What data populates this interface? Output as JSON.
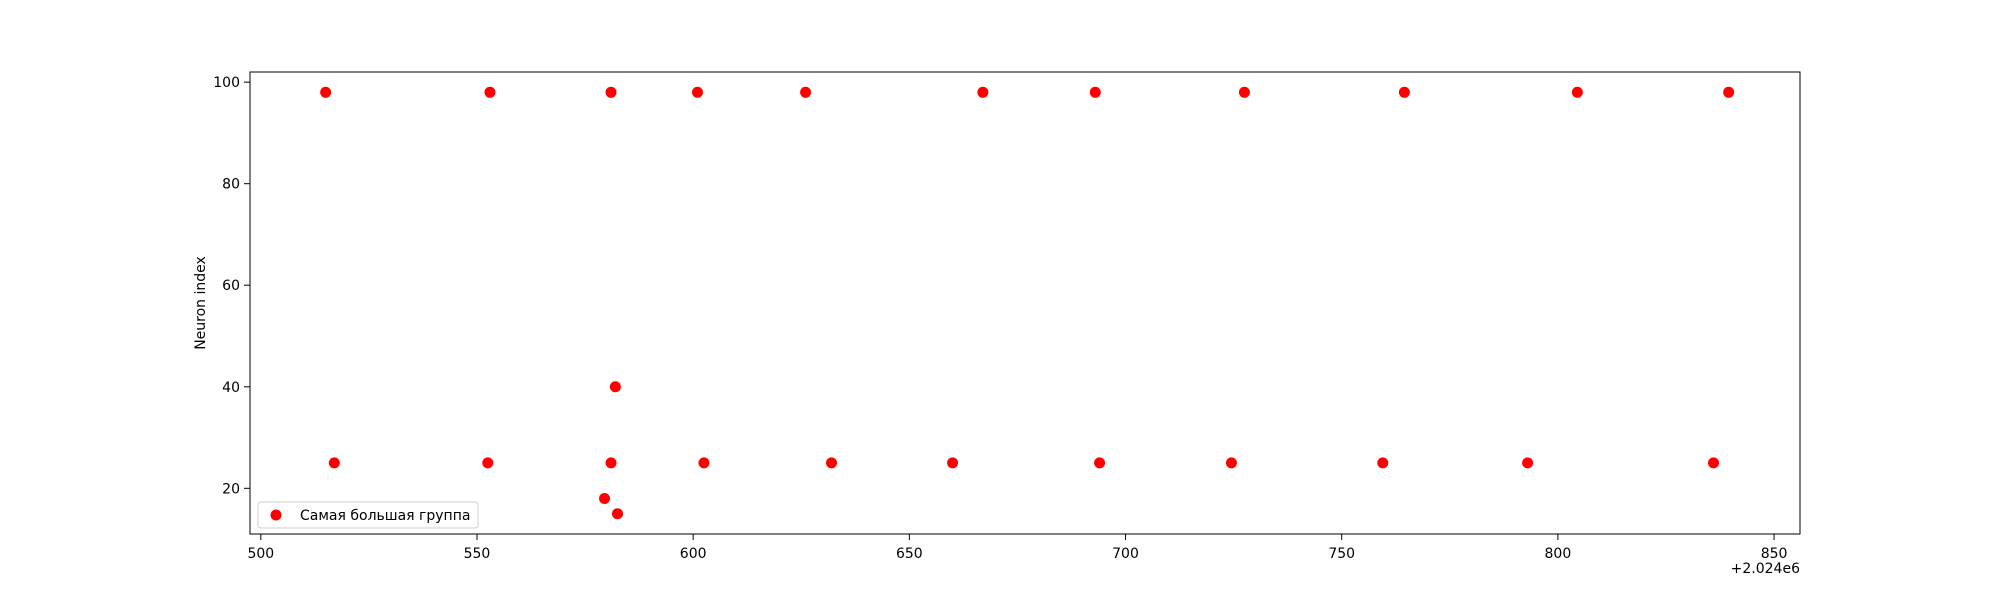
{
  "chart_data": {
    "type": "scatter",
    "title": "",
    "xlabel": "",
    "ylabel": "Neuron index",
    "xlim": [
      2024497.5,
      2024856
    ],
    "ylim": [
      11,
      102
    ],
    "x_ticks": [
      500,
      550,
      600,
      650,
      700,
      750,
      800,
      850
    ],
    "x_tick_labels": [
      "500",
      "550",
      "600",
      "650",
      "700",
      "750",
      "800",
      "850"
    ],
    "x_offset_label": "+2.024e6",
    "x_offset_value": 2024000,
    "y_ticks": [
      20,
      40,
      60,
      80,
      100
    ],
    "y_tick_labels": [
      "20",
      "40",
      "60",
      "80",
      "100"
    ],
    "grid": false,
    "legend_position": "lower-left",
    "series": [
      {
        "name": "Самая большая группа",
        "color": "#ff0000",
        "points": [
          {
            "x": 2024515,
            "y": 98
          },
          {
            "x": 2024553,
            "y": 98
          },
          {
            "x": 2024581,
            "y": 98
          },
          {
            "x": 2024601,
            "y": 98
          },
          {
            "x": 2024626,
            "y": 98
          },
          {
            "x": 2024667,
            "y": 98
          },
          {
            "x": 2024693,
            "y": 98
          },
          {
            "x": 2024727.5,
            "y": 98
          },
          {
            "x": 2024764.5,
            "y": 98
          },
          {
            "x": 2024804.5,
            "y": 98
          },
          {
            "x": 2024839.5,
            "y": 98
          },
          {
            "x": 2024582,
            "y": 40
          },
          {
            "x": 2024517,
            "y": 25
          },
          {
            "x": 2024552.5,
            "y": 25
          },
          {
            "x": 2024581,
            "y": 25
          },
          {
            "x": 2024602.5,
            "y": 25
          },
          {
            "x": 2024632,
            "y": 25
          },
          {
            "x": 2024660,
            "y": 25
          },
          {
            "x": 2024694,
            "y": 25
          },
          {
            "x": 2024724.5,
            "y": 25
          },
          {
            "x": 2024759.5,
            "y": 25
          },
          {
            "x": 2024793,
            "y": 25
          },
          {
            "x": 2024836,
            "y": 25
          },
          {
            "x": 2024579.5,
            "y": 18
          },
          {
            "x": 2024582.5,
            "y": 15
          }
        ]
      }
    ]
  }
}
